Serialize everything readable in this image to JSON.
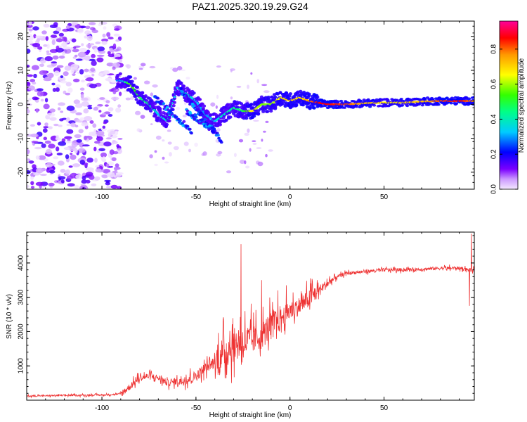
{
  "chart_data": [
    {
      "type": "heatmap",
      "title": "PAZ1.2025.320.19.29.G24",
      "xlabel": "Height of straight line (km)",
      "ylabel": "Frequency (Hz)",
      "xlim": [
        -140,
        98
      ],
      "ylim": [
        -25,
        24.5
      ],
      "xticks": [
        -100,
        -50,
        0,
        50
      ],
      "yticks": [
        -20,
        -10,
        0,
        10,
        20
      ],
      "xtick_labels": [
        "-100",
        "-50",
        "0",
        "50"
      ],
      "ytick_labels": [
        "-20",
        "-10",
        "0",
        "10",
        "20"
      ],
      "colorbar": {
        "label": "Normalized spectral amplitude",
        "range": [
          0,
          0.96
        ],
        "ticks": [
          0.0,
          0.2,
          0.4,
          0.6,
          0.8
        ],
        "tick_labels": [
          "0.0",
          "0.2",
          "0.4",
          "0.6",
          "0.8"
        ]
      },
      "ridge": {
        "x": [
          -90,
          -85,
          -80,
          -75,
          -70,
          -65,
          -60,
          -55,
          -50,
          -45,
          -40,
          -35,
          -30,
          -25,
          -20,
          -15,
          -10,
          -5,
          0,
          5,
          10,
          15,
          20,
          30,
          40,
          50,
          60,
          70,
          80,
          90,
          98
        ],
        "y": [
          7,
          6,
          2,
          0,
          -3,
          -5,
          5,
          3,
          1,
          -3,
          -5,
          -3,
          -1,
          -2,
          -2,
          0,
          0,
          2,
          1,
          2,
          1,
          0.5,
          0,
          0,
          0.3,
          0.5,
          0.5,
          0.8,
          1,
          1,
          1
        ],
        "amplitude": [
          0.3,
          0.6,
          0.5,
          0.45,
          0.35,
          0.4,
          0.35,
          0.4,
          0.35,
          0.3,
          0.35,
          0.4,
          0.45,
          0.5,
          0.7,
          0.6,
          0.6,
          0.7,
          0.75,
          0.7,
          0.8,
          0.9,
          0.9,
          0.85,
          0.75,
          0.7,
          0.72,
          0.75,
          0.85,
          0.9,
          0.8
        ]
      }
    },
    {
      "type": "line",
      "xlabel": "Height of straight line (km)",
      "ylabel": "SNR (10 * v/v)",
      "xlim": [
        -140,
        98
      ],
      "ylim": [
        0,
        4900
      ],
      "xticks": [
        -100,
        -50,
        0,
        50
      ],
      "yticks": [
        1000,
        2000,
        3000,
        4000
      ],
      "xtick_labels": [
        "-100",
        "-50",
        "0",
        "50"
      ],
      "ytick_labels": [
        "1000",
        "2000",
        "3000",
        "4000"
      ],
      "color": "#ee3333",
      "series": [
        {
          "name": "SNR",
          "x": [
            -140,
            -120,
            -100,
            -90,
            -85,
            -80,
            -75,
            -70,
            -65,
            -60,
            -55,
            -50,
            -45,
            -40,
            -35,
            -30,
            -25,
            -20,
            -15,
            -10,
            -5,
            0,
            5,
            10,
            15,
            20,
            25,
            30,
            40,
            50,
            60,
            70,
            80,
            90,
            95,
            98
          ],
          "y": [
            120,
            140,
            150,
            180,
            400,
            650,
            700,
            650,
            500,
            550,
            600,
            700,
            950,
            1100,
            1400,
            1600,
            1700,
            1750,
            1900,
            2200,
            2400,
            2600,
            2750,
            2950,
            3200,
            3400,
            3600,
            3700,
            3750,
            3800,
            3800,
            3820,
            3850,
            3850,
            3800,
            3800
          ],
          "spikes": [
            {
              "x": -26,
              "y": 4550
            },
            {
              "x": -15,
              "y": 3500
            },
            {
              "x": -2,
              "y": 3350
            },
            {
              "x": 96.5,
              "y": 4850
            },
            {
              "x": 95.5,
              "y": 2750
            }
          ]
        }
      ]
    }
  ]
}
